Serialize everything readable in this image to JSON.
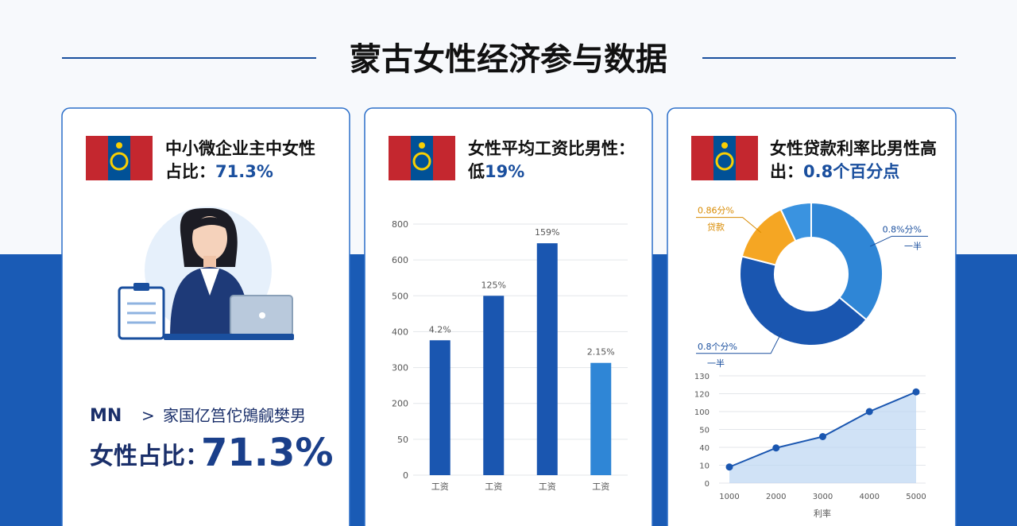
{
  "title": "蒙古女性经济参与数据",
  "cards": [
    {
      "line1": "中小微企业主中女性",
      "line2": "占比：",
      "highlight": "71.3%",
      "code": "MN",
      "arrow": ">",
      "caption": "家国亿筥佗鶂觎樊男",
      "stat_label": "女性占比：",
      "stat_value": "71.3%"
    },
    {
      "line1": "女性平均工资比男性：",
      "line2": "低",
      "highlight": "19%"
    },
    {
      "line1": "女性贷款利率比男性高",
      "line2": "出：",
      "highlight": "0.8个百分点"
    }
  ],
  "chart_data": [
    {
      "type": "bar",
      "categories": [
        "工资",
        "工资",
        "工资",
        "工资"
      ],
      "values": [
        376,
        500,
        693,
        313
      ],
      "colors": [
        "#1a56b0",
        "#1a56b0",
        "#1a56b0",
        "#2f86d6"
      ],
      "annotations": [
        "4.2%",
        "125%",
        "159%",
        "2.15%"
      ],
      "ylim": [
        0,
        800
      ],
      "yticks": [
        0,
        50,
        200,
        300,
        400,
        500,
        600,
        800
      ],
      "tick_spacing": "even",
      "grid": true
    },
    {
      "type": "donut",
      "values": [
        36,
        43,
        14,
        7
      ],
      "colors": [
        "#2f86d6",
        "#1a56b0",
        "#f5a623",
        "#3a93e0"
      ],
      "annotations": [
        {
          "text": "0.8%分%",
          "note": "一半"
        },
        {
          "text": "0.8个分%",
          "note": "一半"
        },
        {
          "text": "0.86分%",
          "note": "贷款"
        }
      ]
    },
    {
      "type": "line",
      "x": [
        1000,
        2000,
        3000,
        4000,
        5000
      ],
      "values": [
        9,
        39,
        46,
        100,
        121
      ],
      "xlim": [
        1000,
        5000
      ],
      "xticks": [
        1000,
        2000,
        3000,
        4000,
        5000
      ],
      "xlabel": "利率",
      "ylim": [
        0,
        130
      ],
      "yticks": [
        0,
        10,
        40,
        50,
        100,
        120,
        130
      ],
      "tick_spacing": "even",
      "color": "#1a56b0",
      "grid": true
    }
  ]
}
